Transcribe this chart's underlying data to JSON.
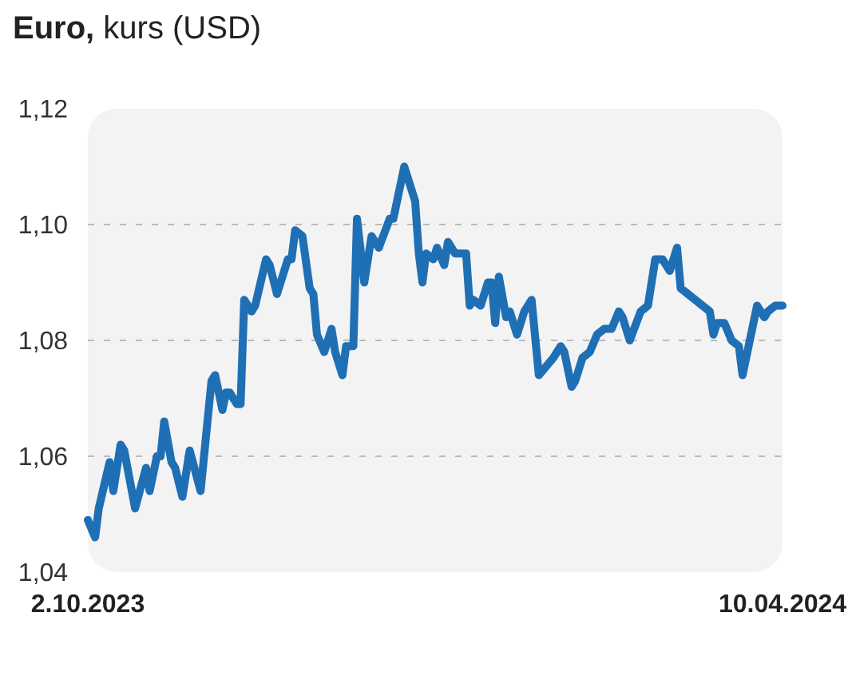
{
  "chart_data": {
    "type": "line",
    "title": "Euro, kurs (USD)",
    "x": [
      "2023-10-02",
      "2023-10-04",
      "2023-10-05",
      "2023-10-08",
      "2023-10-09",
      "2023-10-11",
      "2023-10-12",
      "2023-10-15",
      "2023-10-18",
      "2023-10-19",
      "2023-10-21",
      "2023-10-22",
      "2023-10-23",
      "2023-10-25",
      "2023-10-26",
      "2023-10-28",
      "2023-10-30",
      "2023-11-02",
      "2023-11-05",
      "2023-11-06",
      "2023-11-08",
      "2023-11-09",
      "2023-11-10",
      "2023-11-12",
      "2023-11-13",
      "2023-11-14",
      "2023-11-16",
      "2023-11-17",
      "2023-11-20",
      "2023-11-21",
      "2023-11-23",
      "2023-11-26",
      "2023-11-27",
      "2023-11-28",
      "2023-11-30",
      "2023-12-02",
      "2023-12-03",
      "2023-12-04",
      "2023-12-06",
      "2023-12-08",
      "2023-12-09",
      "2023-12-11",
      "2023-12-12",
      "2023-12-14",
      "2023-12-15",
      "2023-12-17",
      "2023-12-19",
      "2023-12-21",
      "2023-12-24",
      "2023-12-25",
      "2023-12-28",
      "2023-12-29",
      "2023-12-31",
      "2024-01-01",
      "2024-01-02",
      "2024-01-03",
      "2024-01-05",
      "2024-01-06",
      "2024-01-08",
      "2024-01-09",
      "2024-01-11",
      "2024-01-14",
      "2024-01-15",
      "2024-01-16",
      "2024-01-18",
      "2024-01-20",
      "2024-01-21",
      "2024-01-22",
      "2024-01-23",
      "2024-01-25",
      "2024-01-26",
      "2024-01-28",
      "2024-01-30",
      "2024-02-01",
      "2024-02-03",
      "2024-02-07",
      "2024-02-09",
      "2024-02-10",
      "2024-02-12",
      "2024-02-13",
      "2024-02-15",
      "2024-02-17",
      "2024-02-19",
      "2024-02-21",
      "2024-02-23",
      "2024-02-25",
      "2024-02-26",
      "2024-02-28",
      "2024-03-02",
      "2024-03-04",
      "2024-03-06",
      "2024-03-08",
      "2024-03-10",
      "2024-03-12",
      "2024-03-13",
      "2024-03-15",
      "2024-03-17",
      "2024-03-19",
      "2024-03-21",
      "2024-03-22",
      "2024-03-23",
      "2024-03-25",
      "2024-03-27",
      "2024-03-29",
      "2024-03-30",
      "2024-03-31",
      "2024-04-03",
      "2024-04-05",
      "2024-04-06",
      "2024-04-08",
      "2024-04-10"
    ],
    "series": [
      {
        "color": "#1f6fb5",
        "values": [
          1.049,
          1.046,
          1.051,
          1.059,
          1.054,
          1.062,
          1.061,
          1.051,
          1.058,
          1.054,
          1.06,
          1.06,
          1.066,
          1.059,
          1.058,
          1.053,
          1.061,
          1.054,
          1.073,
          1.074,
          1.068,
          1.071,
          1.071,
          1.069,
          1.069,
          1.087,
          1.085,
          1.086,
          1.094,
          1.093,
          1.088,
          1.094,
          1.094,
          1.099,
          1.098,
          1.089,
          1.088,
          1.081,
          1.078,
          1.082,
          1.078,
          1.074,
          1.079,
          1.079,
          1.101,
          1.09,
          1.098,
          1.096,
          1.101,
          1.101,
          1.11,
          1.108,
          1.104,
          1.095,
          1.09,
          1.095,
          1.094,
          1.096,
          1.093,
          1.097,
          1.095,
          1.095,
          1.086,
          1.087,
          1.086,
          1.09,
          1.09,
          1.083,
          1.091,
          1.084,
          1.085,
          1.081,
          1.085,
          1.087,
          1.074,
          1.077,
          1.079,
          1.078,
          1.072,
          1.073,
          1.077,
          1.078,
          1.081,
          1.082,
          1.082,
          1.085,
          1.084,
          1.08,
          1.085,
          1.086,
          1.094,
          1.094,
          1.092,
          1.096,
          1.089,
          1.088,
          1.087,
          1.086,
          1.085,
          1.081,
          1.083,
          1.083,
          1.08,
          1.079,
          1.074,
          1.077,
          1.086,
          1.084,
          1.085,
          1.086,
          1.086
        ]
      }
    ],
    "xlim": [
      "2023-10-02",
      "2024-04-10"
    ],
    "xticks": [
      {
        "value": "2023-10-02",
        "label": "2.10.2023"
      },
      {
        "value": "2024-04-10",
        "label": "10.04.2024"
      }
    ],
    "ylim": [
      1.04,
      1.12
    ],
    "yticks": [
      {
        "value": 1.04,
        "label": "1,04"
      },
      {
        "value": 1.06,
        "label": "1,06"
      },
      {
        "value": 1.08,
        "label": "1,08"
      },
      {
        "value": 1.1,
        "label": "1,10"
      },
      {
        "value": 1.12,
        "label": "1,12"
      }
    ],
    "grid": "y",
    "line_style": "solid",
    "marker": "none"
  }
}
